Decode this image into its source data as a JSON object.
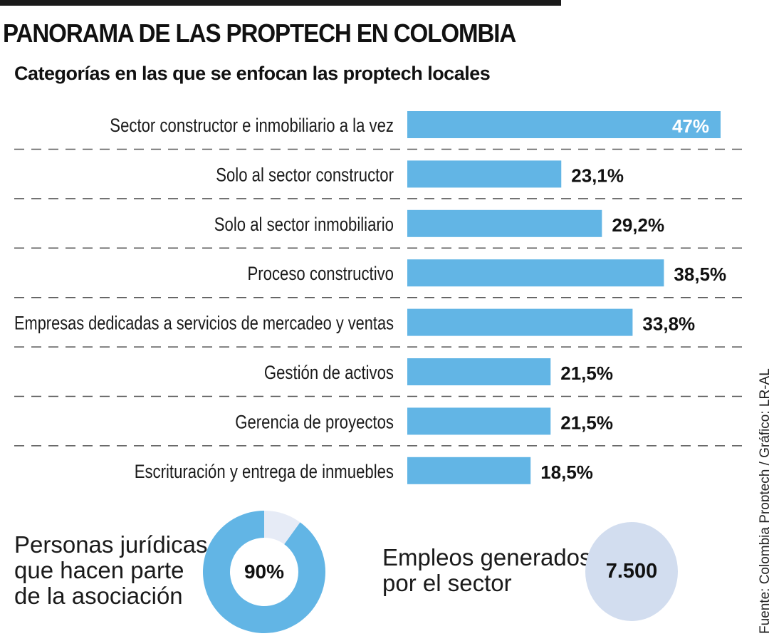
{
  "header": {
    "title": "PANORAMA DE LAS PROPTECH EN COLOMBIA",
    "subtitle": "Categorías en las que se enfocan las proptech locales"
  },
  "chart_data": {
    "type": "bar",
    "orientation": "horizontal",
    "title": "Categorías en las que se enfocan las proptech locales",
    "xlabel": "",
    "ylabel": "",
    "unit": "%",
    "xlim": [
      0,
      50
    ],
    "grid": false,
    "categories": [
      "Sector constructor e inmobiliario a la vez",
      "Solo al sector constructor",
      "Solo al sector inmobiliario",
      "Proceso constructivo",
      "Empresas dedicadas a servicios de mercadeo y ventas",
      "Gestión de activos",
      "Gerencia de proyectos",
      "Escrituración y entrega de inmuebles"
    ],
    "values": [
      47,
      23.1,
      29.2,
      38.5,
      33.8,
      21.5,
      21.5,
      18.5
    ],
    "value_labels": [
      "47%",
      "23,1%",
      "29,2%",
      "38,5%",
      "33,8%",
      "21,5%",
      "21,5%",
      "18,5%"
    ],
    "bar_color": "#62b5e5"
  },
  "donut": {
    "label_lines": [
      "Personas jurídicas",
      "que hacen parte",
      "de la asociación"
    ],
    "value": 90,
    "value_label": "90%",
    "fill_color": "#62b5e5",
    "rest_color": "#e6ebf6"
  },
  "employment": {
    "label_lines": [
      "Empleos generados",
      "por el sector"
    ],
    "value_label": "7.500",
    "circle_color": "#d2ddef"
  },
  "source": "Fuente: Colombia Proptech / Gráfico: LR-AL"
}
